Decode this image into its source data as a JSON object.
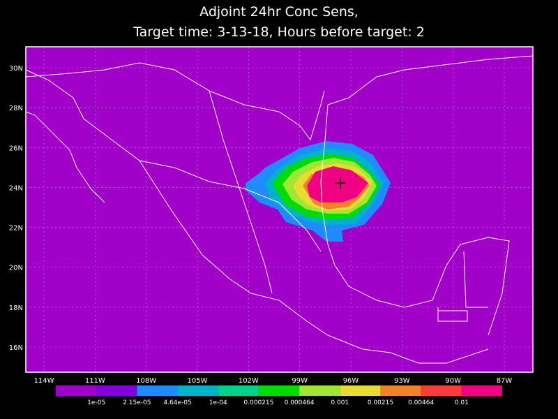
{
  "title": [
    "Adjoint 24hr Conc Sens,",
    "Target time: 3-13-18, Hours before target: 2"
  ],
  "map": {
    "lon_labels": [
      "114W",
      "111W",
      "108W",
      "105W",
      "102W",
      "99W",
      "96W",
      "93W",
      "90W",
      "87W"
    ],
    "lat_labels": [
      "30N",
      "28N",
      "26N",
      "24N",
      "22N",
      "20N",
      "18N",
      "16N"
    ]
  },
  "colorbar": {
    "labels": [
      "1e-05",
      "2.15e-05",
      "4.64e-05",
      "1e-04",
      "0.000215",
      "0.000464",
      "0.001",
      "0.00215",
      "0.00464",
      "0.01"
    ],
    "colors": [
      "#a000c8",
      "#8200dc",
      "#1e8cff",
      "#00b4c8",
      "#00d28c",
      "#00dc00",
      "#a0e632",
      "#e6dc32",
      "#f08228",
      "#fa3c3c",
      "#f00082"
    ]
  }
}
